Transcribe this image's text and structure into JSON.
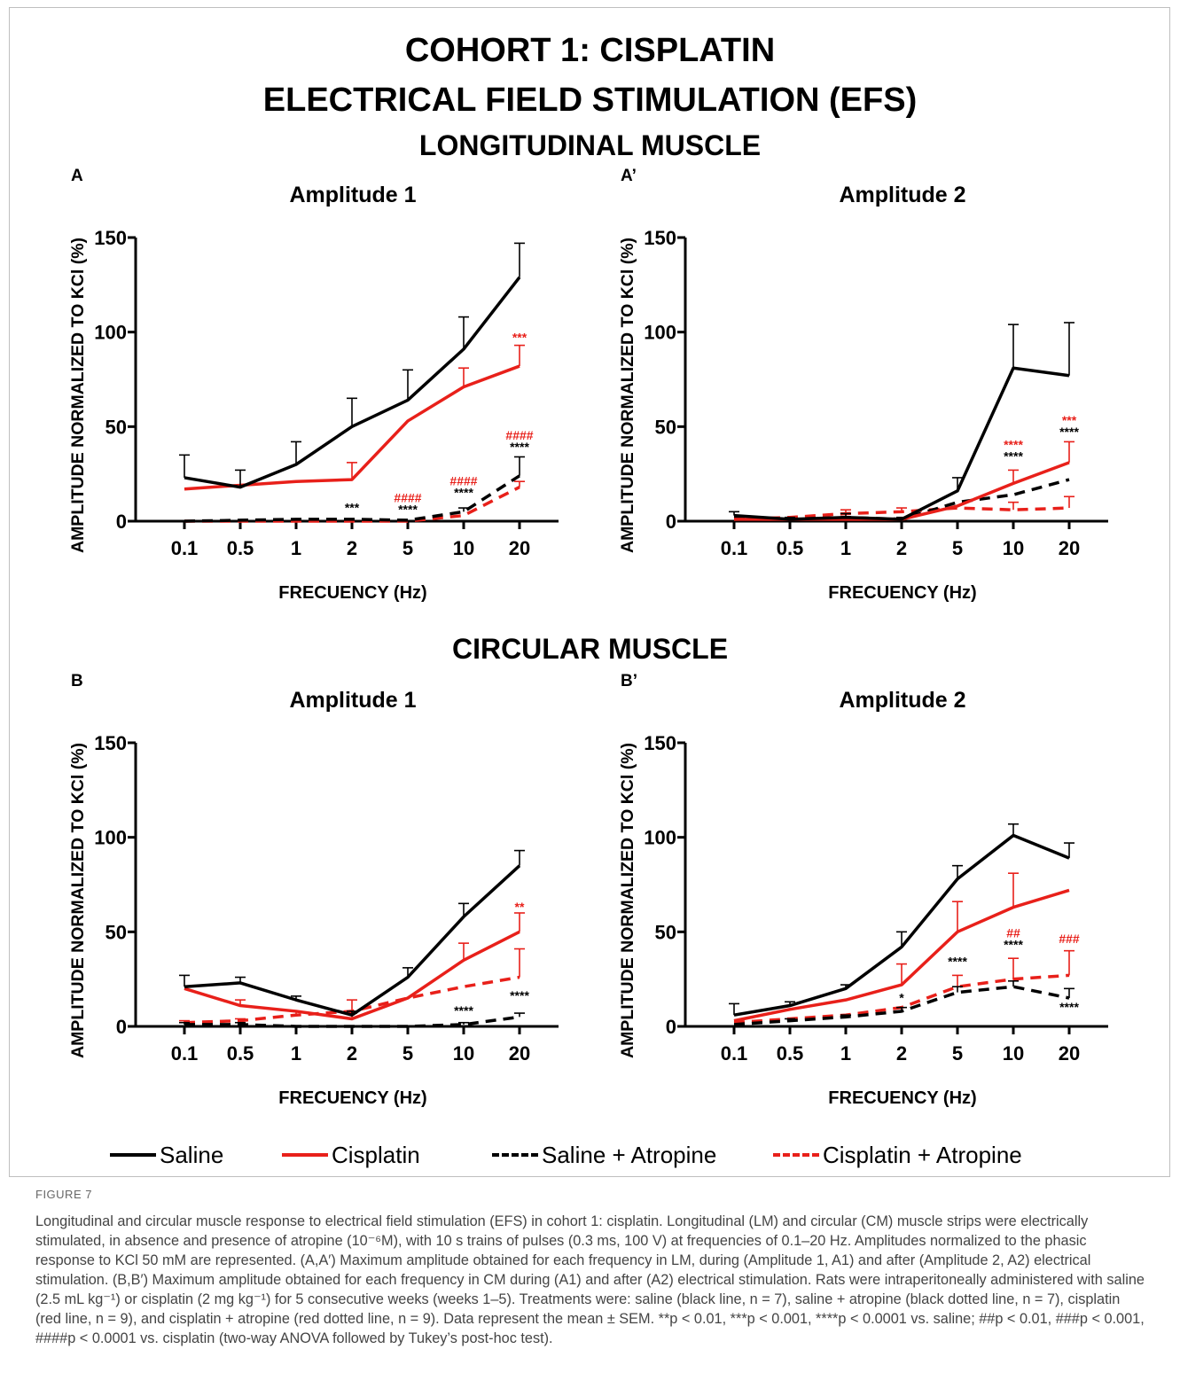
{
  "figure": {
    "title_lines": [
      "COHORT 1: CISPLATIN",
      "ELECTRICAL FIELD STIMULATION (EFS)"
    ],
    "section_longitudinal": "LONGITUDINAL MUSCLE",
    "section_circular": "CIRCULAR MUSCLE",
    "figure_label": "FIGURE 7",
    "caption": "Longitudinal and circular muscle response to electrical field stimulation (EFS) in cohort 1: cisplatin. Longitudinal (LM) and circular (CM) muscle strips were electrically stimulated, in absence and presence of atropine (10⁻⁶M), with 10 s trains of pulses (0.3 ms, 100 V) at frequencies of 0.1–20 Hz. Amplitudes normalized to the phasic response to KCl 50 mM are represented. (A,A′) Maximum amplitude obtained for each frequency in LM, during (Amplitude 1, A1) and after (Amplitude 2, A2) electrical stimulation. (B,B′) Maximum amplitude obtained for each frequency in CM during (A1) and after (A2) electrical stimulation. Rats were intraperitoneally administered with saline (2.5 mL kg⁻¹) or cisplatin (2 mg kg⁻¹) for 5 consecutive weeks (weeks 1–5). Treatments were: saline (black line, n = 7), saline + atropine (black dotted line, n = 7), cisplatin (red line, n = 9), and cisplatin + atropine (red dotted line, n = 9). Data represent the mean ± SEM. **p < 0.01, ***p < 0.001, ****p < 0.0001 vs. saline; ##p < 0.01, ###p < 0.001, ####p < 0.0001 vs. cisplatin (two-way ANOVA followed by Tukey’s post-hoc test)."
  },
  "legend": [
    {
      "label": "Saline",
      "color": "#000000",
      "style": "solid"
    },
    {
      "label": "Cisplatin",
      "color": "#e8201a",
      "style": "solid"
    },
    {
      "label": "Saline + Atropine",
      "color": "#000000",
      "style": "dashed"
    },
    {
      "label": "Cisplatin + Atropine",
      "color": "#e8201a",
      "style": "dashed"
    }
  ],
  "chart_data": [
    {
      "panel": "A",
      "type": "line",
      "title": "Amplitude 1",
      "xlabel": "FRECUENCY (Hz)",
      "ylabel": "AMPLITUDE NORMALIZED TO KCl (%)",
      "ylim": [
        0,
        150
      ],
      "yticks": [
        0,
        50,
        100,
        150
      ],
      "categories": [
        "0.1",
        "0.5",
        "1",
        "2",
        "5",
        "10",
        "20"
      ],
      "series": [
        {
          "name": "Saline",
          "color": "#000000",
          "dash": false,
          "values": [
            23,
            18,
            30,
            50,
            64,
            91,
            129
          ],
          "errors": [
            12,
            9,
            12,
            15,
            16,
            17,
            18
          ]
        },
        {
          "name": "Cisplatin",
          "color": "#e8201a",
          "dash": false,
          "values": [
            17,
            19,
            21,
            22,
            53,
            71,
            82
          ],
          "errors": [
            0,
            0,
            0,
            9,
            0,
            10,
            11
          ]
        },
        {
          "name": "Saline + Atropine",
          "color": "#000000",
          "dash": true,
          "values": [
            0,
            0.5,
            1,
            1,
            0.5,
            5,
            24
          ],
          "errors": [
            0,
            0,
            0,
            0,
            0,
            2,
            10
          ]
        },
        {
          "name": "Cisplatin + Atropine",
          "color": "#e8201a",
          "dash": true,
          "values": [
            0,
            0,
            0,
            0,
            0,
            3,
            18
          ],
          "errors": [
            0,
            0,
            0,
            0,
            0,
            0,
            3
          ]
        }
      ],
      "annotations": [
        {
          "category": "2",
          "lines": [
            {
              "text": "***",
              "color": "#000000"
            }
          ],
          "y": 5
        },
        {
          "category": "5",
          "lines": [
            {
              "text": "####",
              "color": "#e8201a"
            },
            {
              "text": "****",
              "color": "#000000"
            }
          ],
          "y": 4
        },
        {
          "category": "10",
          "lines": [
            {
              "text": "####",
              "color": "#e8201a"
            },
            {
              "text": "****",
              "color": "#000000"
            }
          ],
          "y": 13
        },
        {
          "category": "20",
          "lines": [
            {
              "text": "####",
              "color": "#e8201a"
            },
            {
              "text": "****",
              "color": "#000000"
            }
          ],
          "y": 37
        },
        {
          "category": "20",
          "lines": [
            {
              "text": "***",
              "color": "#e8201a"
            }
          ],
          "y": 95
        }
      ]
    },
    {
      "panel": "A’",
      "type": "line",
      "title": "Amplitude 2",
      "xlabel": "FRECUENCY (Hz)",
      "ylabel": "AMPLITUDE NORMALIZED TO KCl (%)",
      "ylim": [
        0,
        150
      ],
      "yticks": [
        0,
        50,
        100,
        150
      ],
      "categories": [
        "0.1",
        "0.5",
        "1",
        "2",
        "5",
        "10",
        "20"
      ],
      "series": [
        {
          "name": "Saline",
          "color": "#000000",
          "dash": false,
          "values": [
            3,
            1,
            2,
            1,
            16,
            81,
            77
          ],
          "errors": [
            2,
            1,
            2,
            1,
            7,
            23,
            28
          ]
        },
        {
          "name": "Cisplatin",
          "color": "#e8201a",
          "dash": false,
          "values": [
            1,
            1,
            1,
            1,
            8,
            20,
            31
          ],
          "errors": [
            0,
            0,
            0,
            0,
            0,
            7,
            11
          ]
        },
        {
          "name": "Saline + Atropine",
          "color": "#000000",
          "dash": true,
          "values": [
            2,
            1,
            2,
            1,
            10,
            14,
            22
          ],
          "errors": [
            0,
            0,
            0,
            0,
            0,
            0,
            0
          ]
        },
        {
          "name": "Cisplatin + Atropine",
          "color": "#e8201a",
          "dash": true,
          "values": [
            1,
            2,
            4,
            5,
            7,
            6,
            7
          ],
          "errors": [
            0,
            0,
            2,
            2,
            0,
            4,
            6
          ]
        }
      ],
      "annotations": [
        {
          "category": "10",
          "lines": [
            {
              "text": "****",
              "color": "#e8201a"
            },
            {
              "text": "****",
              "color": "#000000"
            }
          ],
          "y": 32
        },
        {
          "category": "20",
          "lines": [
            {
              "text": "***",
              "color": "#e8201a"
            },
            {
              "text": "****",
              "color": "#000000"
            }
          ],
          "y": 45
        }
      ]
    },
    {
      "panel": "B",
      "type": "line",
      "title": "Amplitude 1",
      "xlabel": "FRECUENCY (Hz)",
      "ylabel": "AMPLITUDE NORMALIZED TO KCl (%)",
      "ylim": [
        0,
        150
      ],
      "yticks": [
        0,
        50,
        100,
        150
      ],
      "categories": [
        "0.1",
        "0.5",
        "1",
        "2",
        "5",
        "10",
        "20"
      ],
      "series": [
        {
          "name": "Saline",
          "color": "#000000",
          "dash": false,
          "values": [
            21,
            23,
            14,
            6,
            26,
            58,
            85
          ],
          "errors": [
            6,
            3,
            2,
            2,
            5,
            7,
            8
          ]
        },
        {
          "name": "Cisplatin",
          "color": "#e8201a",
          "dash": false,
          "values": [
            20,
            11,
            8,
            4,
            15,
            35,
            50
          ],
          "errors": [
            0,
            3,
            0,
            3,
            0,
            9,
            10
          ]
        },
        {
          "name": "Saline + Atropine",
          "color": "#000000",
          "dash": true,
          "values": [
            1,
            1,
            0,
            0,
            0,
            1,
            5
          ],
          "errors": [
            1,
            1,
            0,
            0,
            0,
            1,
            2
          ]
        },
        {
          "name": "Cisplatin + Atropine",
          "color": "#e8201a",
          "dash": true,
          "values": [
            2,
            3,
            6,
            8,
            15,
            21,
            26
          ],
          "errors": [
            1,
            1,
            2,
            6,
            0,
            0,
            15
          ]
        }
      ],
      "annotations": [
        {
          "category": "10",
          "lines": [
            {
              "text": "****",
              "color": "#000000"
            }
          ],
          "y": 6
        },
        {
          "category": "20",
          "lines": [
            {
              "text": "****",
              "color": "#000000"
            }
          ],
          "y": 14
        },
        {
          "category": "20",
          "lines": [
            {
              "text": "**",
              "color": "#e8201a"
            }
          ],
          "y": 61
        }
      ]
    },
    {
      "panel": "B’",
      "type": "line",
      "title": "Amplitude 2",
      "xlabel": "FRECUENCY (Hz)",
      "ylabel": "AMPLITUDE NORMALIZED TO KCl (%)",
      "ylim": [
        0,
        150
      ],
      "yticks": [
        0,
        50,
        100,
        150
      ],
      "categories": [
        "0.1",
        "0.5",
        "1",
        "2",
        "5",
        "10",
        "20"
      ],
      "series": [
        {
          "name": "Saline",
          "color": "#000000",
          "dash": false,
          "values": [
            6,
            11,
            20,
            42,
            78,
            101,
            89
          ],
          "errors": [
            6,
            2,
            2,
            8,
            7,
            6,
            8
          ]
        },
        {
          "name": "Cisplatin",
          "color": "#e8201a",
          "dash": false,
          "values": [
            3,
            9,
            14,
            22,
            50,
            63,
            72
          ],
          "errors": [
            0,
            0,
            0,
            11,
            16,
            18,
            0
          ]
        },
        {
          "name": "Saline + Atropine",
          "color": "#000000",
          "dash": true,
          "values": [
            1,
            3,
            5,
            8,
            18,
            21,
            15
          ],
          "errors": [
            0,
            1,
            1,
            2,
            3,
            3,
            5
          ]
        },
        {
          "name": "Cisplatin + Atropine",
          "color": "#e8201a",
          "dash": true,
          "values": [
            2,
            4,
            6,
            10,
            21,
            25,
            27
          ],
          "errors": [
            0,
            0,
            0,
            0,
            6,
            11,
            13
          ]
        }
      ],
      "annotations": [
        {
          "category": "2",
          "lines": [
            {
              "text": "*",
              "color": "#000000"
            }
          ],
          "y": 13
        },
        {
          "category": "5",
          "lines": [
            {
              "text": "****",
              "color": "#000000"
            }
          ],
          "y": 32
        },
        {
          "category": "10",
          "lines": [
            {
              "text": "##",
              "color": "#e8201a"
            },
            {
              "text": "****",
              "color": "#000000"
            }
          ],
          "y": 41
        },
        {
          "category": "20",
          "lines": [
            {
              "text": "###",
              "color": "#e8201a"
            }
          ],
          "y": 44
        },
        {
          "category": "20",
          "lines": [
            {
              "text": "****",
              "color": "#000000"
            }
          ],
          "y": 8
        }
      ]
    }
  ]
}
